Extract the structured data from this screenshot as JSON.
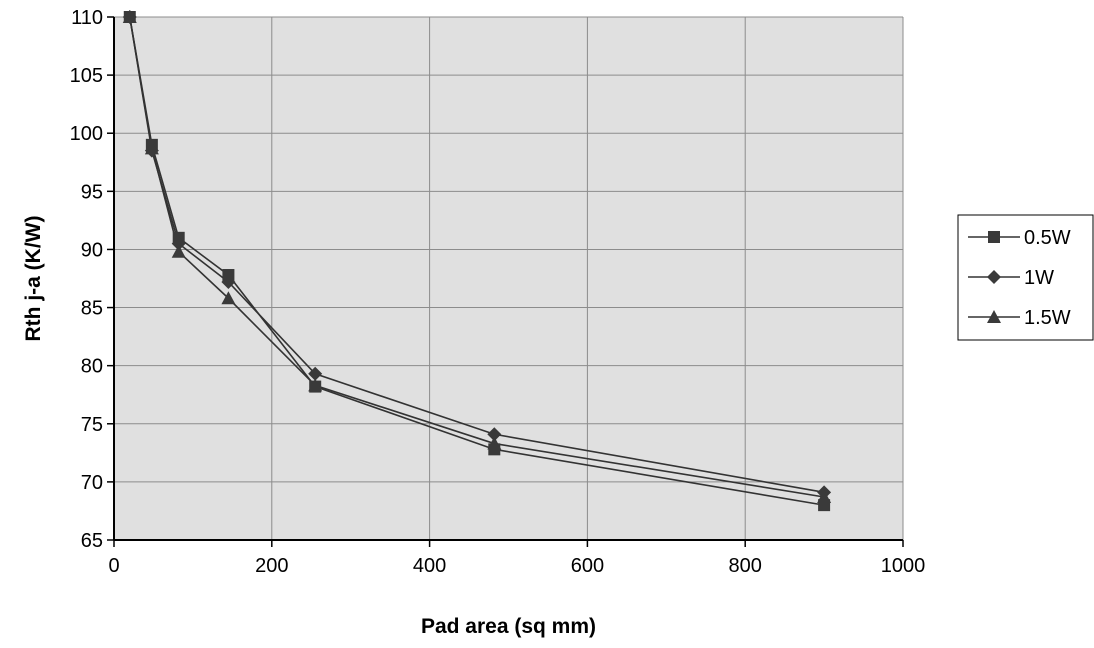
{
  "chart_data": {
    "type": "line",
    "title": "",
    "xlabel": "Pad area (sq mm)",
    "ylabel": "Rth j-a (K/W)",
    "xlim": [
      0,
      1000
    ],
    "ylim": [
      65,
      110
    ],
    "xticks": [
      0,
      200,
      400,
      600,
      800,
      1000
    ],
    "yticks": [
      65,
      70,
      75,
      80,
      85,
      90,
      95,
      100,
      105,
      110
    ],
    "grid": true,
    "plot_background": "#e0e0e0",
    "gridline_color": "#8c8c8c",
    "line_color": "#333333",
    "legend_position": "right",
    "series": [
      {
        "name": "0.5W",
        "marker": "square",
        "x": [
          20,
          48,
          82,
          145,
          255,
          482,
          900
        ],
        "y": [
          110,
          99,
          91,
          87.8,
          78.2,
          72.8,
          68
        ]
      },
      {
        "name": "1W",
        "marker": "diamond",
        "x": [
          20,
          48,
          82,
          145,
          255,
          482,
          900
        ],
        "y": [
          110,
          98.5,
          90.5,
          87.2,
          79.3,
          74.1,
          69.1
        ]
      },
      {
        "name": "1.5W",
        "marker": "triangle",
        "x": [
          20,
          48,
          82,
          145,
          255,
          482,
          900
        ],
        "y": [
          110,
          98.7,
          89.8,
          85.8,
          78.3,
          73.3,
          68.7
        ]
      }
    ]
  }
}
